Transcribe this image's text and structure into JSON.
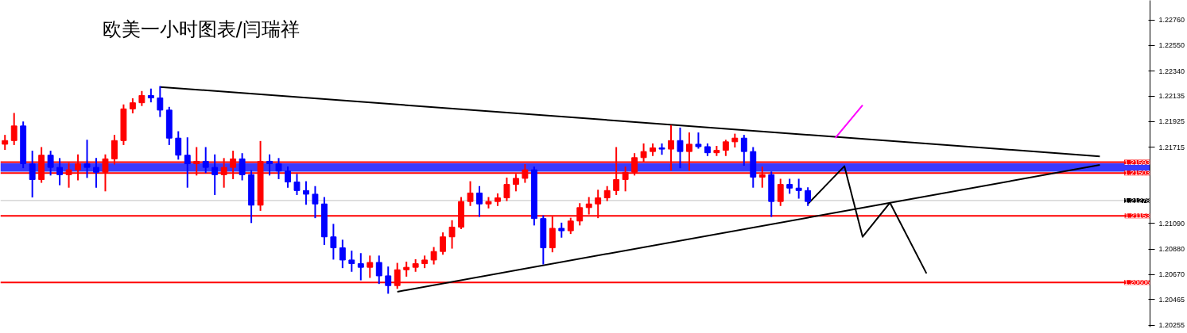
{
  "chart_data": {
    "type": "candlestick",
    "title": "欧美一小时图表/闫瑞祥",
    "categories": [
      null,
      null,
      null,
      null,
      null,
      null,
      null,
      null,
      null,
      null,
      null,
      null,
      null,
      null,
      null,
      null,
      null,
      null,
      null,
      null,
      null,
      null,
      null,
      null,
      null,
      null,
      null,
      null,
      null,
      null,
      null,
      null,
      null,
      null,
      null,
      null,
      null,
      null,
      null,
      null,
      null,
      null,
      null,
      null,
      null,
      null,
      null,
      null,
      null,
      null,
      null,
      null,
      null,
      null,
      null,
      null,
      null,
      null,
      null,
      null,
      null,
      null,
      null,
      null,
      null,
      null,
      null,
      null,
      null,
      null,
      null,
      null,
      null,
      null,
      null,
      null,
      null,
      null,
      null,
      null,
      null,
      null,
      null,
      null,
      null,
      null,
      null,
      null,
      null,
      null,
      null,
      null,
      null,
      null,
      null,
      null,
      null,
      null,
      null,
      null,
      null,
      null,
      null,
      null,
      null,
      null,
      null,
      null,
      null,
      null,
      null,
      null,
      null,
      null,
      null,
      null,
      null,
      null,
      null,
      null,
      null,
      null,
      null,
      null,
      null,
      null
    ],
    "ohlc": [
      [
        1.2174,
        1.2181,
        1.217,
        1.2177
      ],
      [
        1.2177,
        1.2199,
        1.2174,
        1.2189
      ],
      [
        1.2189,
        1.2192,
        1.2155,
        1.2158
      ],
      [
        1.2158,
        1.2168,
        1.2131,
        1.2145
      ],
      [
        1.2145,
        1.2171,
        1.2143,
        1.2165
      ],
      [
        1.2165,
        1.2168,
        1.2149,
        1.2155
      ],
      [
        1.2155,
        1.2162,
        1.2141,
        1.2149
      ],
      [
        1.2149,
        1.2158,
        1.2139,
        1.2153
      ],
      [
        1.2153,
        1.2165,
        1.2145,
        1.2158
      ],
      [
        1.2158,
        1.2177,
        1.2147,
        1.2155
      ],
      [
        1.2155,
        1.2162,
        1.2139,
        1.2151
      ],
      [
        1.2151,
        1.2165,
        1.2136,
        1.2162
      ],
      [
        1.2162,
        1.2181,
        1.2158,
        1.2177
      ],
      [
        1.2177,
        1.2206,
        1.2174,
        1.2203
      ],
      [
        1.2203,
        1.2211,
        1.22,
        1.2208
      ],
      [
        1.2208,
        1.2217,
        1.2206,
        1.2214
      ],
      [
        1.2214,
        1.2219,
        1.2209,
        1.2212
      ],
      [
        1.2212,
        1.2221,
        1.2197,
        1.2202
      ],
      [
        1.2202,
        1.2204,
        1.2174,
        1.2179
      ],
      [
        1.2179,
        1.2184,
        1.2162,
        1.2165
      ],
      [
        1.2165,
        1.2179,
        1.2139,
        1.2158
      ],
      [
        1.2158,
        1.2171,
        1.2149,
        1.216
      ],
      [
        1.216,
        1.2171,
        1.2151,
        1.2155
      ],
      [
        1.2155,
        1.2165,
        1.2133,
        1.2149
      ],
      [
        1.2149,
        1.2162,
        1.2139,
        1.2155
      ],
      [
        1.2155,
        1.2168,
        1.2146,
        1.2162
      ],
      [
        1.2162,
        1.2166,
        1.2145,
        1.2149
      ],
      [
        1.2149,
        1.2152,
        1.211,
        1.2124
      ],
      [
        1.2124,
        1.2176,
        1.212,
        1.216
      ],
      [
        1.216,
        1.2165,
        1.2149,
        1.2158
      ],
      [
        1.2158,
        1.2162,
        1.2146,
        1.2152
      ],
      [
        1.2152,
        1.2155,
        1.2139,
        1.2143
      ],
      [
        1.2143,
        1.2149,
        1.2133,
        1.2136
      ],
      [
        1.2136,
        1.2143,
        1.2125,
        1.2133
      ],
      [
        1.2133,
        1.2139,
        1.2114,
        1.2125
      ],
      [
        1.2125,
        1.213,
        1.2092,
        1.2098
      ],
      [
        1.2098,
        1.2108,
        1.208,
        1.2089
      ],
      [
        1.2089,
        1.2095,
        1.2073,
        1.2079
      ],
      [
        1.2079,
        1.2086,
        1.207,
        1.2076
      ],
      [
        1.2076,
        1.2084,
        1.2063,
        1.2073
      ],
      [
        1.2073,
        1.2082,
        1.2065,
        1.2077
      ],
      [
        1.2077,
        1.2082,
        1.206,
        1.2066
      ],
      [
        1.2066,
        1.2073,
        1.2052,
        1.2058
      ],
      [
        1.2058,
        1.2076,
        1.2056,
        1.2071
      ],
      [
        1.2071,
        1.2077,
        1.2066,
        1.2073
      ],
      [
        1.2073,
        1.2079,
        1.207,
        1.2076
      ],
      [
        1.2076,
        1.2082,
        1.2073,
        1.2079
      ],
      [
        1.2079,
        1.2089,
        1.2076,
        1.2086
      ],
      [
        1.2086,
        1.2101,
        1.2084,
        1.2098
      ],
      [
        1.2098,
        1.2111,
        1.2089,
        1.2106
      ],
      [
        1.2106,
        1.213,
        1.2105,
        1.2127
      ],
      [
        1.2127,
        1.2143,
        1.2124,
        1.2134
      ],
      [
        1.2134,
        1.2139,
        1.2115,
        1.2125
      ],
      [
        1.2125,
        1.213,
        1.2122,
        1.2127
      ],
      [
        1.2127,
        1.2133,
        1.2124,
        1.213
      ],
      [
        1.213,
        1.2146,
        1.2128,
        1.2141
      ],
      [
        1.2141,
        1.2149,
        1.2136,
        1.2146
      ],
      [
        1.2146,
        1.2157,
        1.2143,
        1.2153
      ],
      [
        1.2153,
        1.2155,
        1.2108,
        1.2113
      ],
      [
        1.2113,
        1.2115,
        1.2076,
        1.2089
      ],
      [
        1.2089,
        1.2114,
        1.2086,
        1.2105
      ],
      [
        1.2105,
        1.2109,
        1.2098,
        1.2103
      ],
      [
        1.2103,
        1.2113,
        1.2101,
        1.2111
      ],
      [
        1.2111,
        1.2125,
        1.2108,
        1.2122
      ],
      [
        1.2122,
        1.213,
        1.2117,
        1.2125
      ],
      [
        1.2125,
        1.2136,
        1.2114,
        1.213
      ],
      [
        1.213,
        1.2139,
        1.2128,
        1.2136
      ],
      [
        1.2136,
        1.2171,
        1.2133,
        1.2145
      ],
      [
        1.2145,
        1.2155,
        1.2136,
        1.2151
      ],
      [
        1.2151,
        1.2166,
        1.2149,
        1.2163
      ],
      [
        1.2163,
        1.2174,
        1.216,
        1.2168
      ],
      [
        1.2168,
        1.2174,
        1.2165,
        1.2171
      ],
      [
        1.2171,
        1.2174,
        1.2166,
        1.217
      ],
      [
        1.217,
        1.2189,
        1.2153,
        1.2177
      ],
      [
        1.2177,
        1.2187,
        1.2155,
        1.2168
      ],
      [
        1.2168,
        1.2183,
        1.2153,
        1.2174
      ],
      [
        1.2174,
        1.2183,
        1.2171,
        1.2172
      ],
      [
        1.2172,
        1.2174,
        1.2165,
        1.2167
      ],
      [
        1.2167,
        1.2172,
        1.2165,
        1.2169
      ],
      [
        1.2169,
        1.2177,
        1.2165,
        1.2176
      ],
      [
        1.2176,
        1.2182,
        1.2172,
        1.2179
      ],
      [
        1.2179,
        1.2181,
        1.2157,
        1.2168
      ],
      [
        1.2168,
        1.2171,
        1.2139,
        1.2147
      ],
      [
        1.2147,
        1.2155,
        1.2139,
        1.2149
      ],
      [
        1.2149,
        1.2151,
        1.2115,
        1.2127
      ],
      [
        1.2127,
        1.2145,
        1.2124,
        1.2141
      ],
      [
        1.2141,
        1.2145,
        1.2134,
        1.2138
      ],
      [
        1.2138,
        1.2145,
        1.213,
        1.2136
      ],
      [
        1.2136,
        1.2138,
        1.2124,
        1.2127
      ],
      null,
      null,
      null,
      null,
      null,
      null,
      null,
      null,
      null,
      null,
      null,
      null,
      null,
      null,
      null,
      null,
      null,
      null,
      null,
      null,
      null,
      null,
      null,
      null,
      null,
      null,
      null,
      null,
      null,
      null,
      null,
      null,
      null,
      null,
      null,
      null,
      null
    ],
    "colors": [
      "#ff0000",
      "#ff0000",
      "#0000ff",
      "#0000ff",
      "#ff0000",
      "#0000ff",
      "#0000ff",
      "#ff0000",
      "#ff0000",
      "#0000ff",
      "#0000ff",
      "#ff0000",
      "#ff0000",
      "#ff0000",
      "#ff0000",
      "#ff0000",
      "#0000ff",
      "#0000ff",
      "#0000ff",
      "#0000ff",
      "#0000ff",
      "#ff0000",
      "#0000ff",
      "#0000ff",
      "#ff0000",
      "#ff0000",
      "#0000ff",
      "#0000ff",
      "#ff0000",
      "#0000ff",
      "#0000ff",
      "#0000ff",
      "#0000ff",
      "#0000ff",
      "#0000ff",
      "#0000ff",
      "#0000ff",
      "#0000ff",
      "#0000ff",
      "#0000ff",
      "#ff0000",
      "#0000ff",
      "#0000ff",
      "#ff0000",
      "#ff0000",
      "#ff0000",
      "#ff0000",
      "#ff0000",
      "#ff0000",
      "#ff0000",
      "#ff0000",
      "#ff0000",
      "#0000ff",
      "#ff0000",
      "#ff0000",
      "#ff0000",
      "#ff0000",
      "#ff0000",
      "#0000ff",
      "#0000ff",
      "#ff0000",
      "#0000ff",
      "#ff0000",
      "#ff0000",
      "#ff0000",
      "#ff0000",
      "#ff0000",
      "#ff0000",
      "#ff0000",
      "#ff0000",
      "#ff0000",
      "#ff0000",
      "#0000ff",
      "#ff0000",
      "#0000ff",
      "#ff0000",
      "#0000ff",
      "#0000ff",
      "#ff0000",
      "#ff0000",
      "#ff0000",
      "#0000ff",
      "#0000ff",
      "#ff0000",
      "#0000ff",
      "#ff0000",
      "#0000ff",
      "#0000ff",
      "#0000ff",
      null,
      null,
      null,
      null,
      null,
      null,
      null,
      null,
      null,
      null,
      null,
      null,
      null,
      null,
      null,
      null,
      null,
      null,
      null,
      null,
      null,
      null,
      null,
      null,
      null,
      null,
      null,
      null,
      null,
      null,
      null,
      null,
      null,
      null,
      null,
      null,
      null
    ],
    "series": [
      {
        "type": "line",
        "color": "#000000",
        "values": [
          null,
          null,
          null,
          null,
          null,
          null,
          null,
          null,
          null,
          null,
          null,
          null,
          null,
          null,
          null,
          null,
          null,
          1.2221,
          null,
          null,
          null,
          null,
          null,
          null,
          null,
          null,
          null,
          null,
          null,
          null,
          null,
          null,
          null,
          null,
          null,
          null,
          null,
          null,
          null,
          null,
          null,
          null,
          null,
          null,
          null,
          null,
          null,
          null,
          null,
          null,
          null,
          null,
          null,
          null,
          null,
          null,
          null,
          null,
          null,
          null,
          null,
          null,
          null,
          null,
          null,
          null,
          null,
          null,
          null,
          null,
          null,
          null,
          null,
          null,
          null,
          null,
          null,
          null,
          null,
          null,
          null,
          null,
          null,
          null,
          null,
          null,
          null,
          null,
          null,
          null,
          null,
          null,
          null,
          null,
          null,
          null,
          null,
          null,
          null,
          null,
          null,
          null,
          null,
          null,
          null,
          null,
          null,
          null,
          null,
          null,
          null,
          null,
          null,
          null,
          null,
          null,
          null,
          null,
          null,
          null,
          1.2164,
          null,
          null,
          null,
          null,
          null
        ]
      },
      {
        "type": "line",
        "color": "#000000",
        "values": [
          null,
          null,
          null,
          null,
          null,
          null,
          null,
          null,
          null,
          null,
          null,
          null,
          null,
          null,
          null,
          null,
          null,
          null,
          null,
          null,
          null,
          null,
          null,
          null,
          null,
          null,
          null,
          null,
          null,
          null,
          null,
          null,
          null,
          null,
          null,
          null,
          null,
          null,
          null,
          null,
          null,
          null,
          null,
          1.2053,
          null,
          null,
          null,
          null,
          null,
          null,
          null,
          null,
          null,
          null,
          null,
          null,
          null,
          null,
          null,
          null,
          null,
          null,
          null,
          null,
          null,
          null,
          null,
          null,
          null,
          null,
          null,
          null,
          null,
          null,
          null,
          null,
          null,
          null,
          null,
          null,
          null,
          null,
          null,
          null,
          null,
          null,
          null,
          null,
          null,
          null,
          null,
          null,
          null,
          null,
          null,
          null,
          null,
          null,
          null,
          null,
          null,
          null,
          null,
          null,
          null,
          null,
          null,
          null,
          null,
          null,
          null,
          null,
          null,
          null,
          null,
          null,
          null,
          null,
          null,
          null,
          1.2157,
          null,
          null,
          null,
          null,
          null
        ]
      },
      {
        "type": "line",
        "color": "#000000",
        "values": [
          null,
          null,
          null,
          null,
          null,
          null,
          null,
          null,
          null,
          null,
          null,
          null,
          null,
          null,
          null,
          null,
          null,
          null,
          null,
          null,
          null,
          null,
          null,
          null,
          null,
          null,
          null,
          null,
          null,
          null,
          null,
          null,
          null,
          null,
          null,
          null,
          null,
          null,
          null,
          null,
          null,
          null,
          null,
          null,
          null,
          null,
          null,
          null,
          null,
          null,
          null,
          null,
          null,
          null,
          null,
          null,
          null,
          null,
          null,
          null,
          null,
          null,
          null,
          null,
          null,
          null,
          null,
          null,
          null,
          null,
          null,
          null,
          null,
          null,
          null,
          null,
          null,
          null,
          null,
          null,
          null,
          null,
          null,
          null,
          null,
          null,
          null,
          null,
          1.2125,
          null,
          null,
          null,
          1.2156,
          null,
          1.2098,
          null,
          null,
          1.2126,
          null,
          null,
          null,
          1.2068,
          null,
          null,
          null,
          null,
          null,
          null,
          null,
          null,
          null,
          null,
          null,
          null,
          null,
          null,
          null,
          null,
          null,
          null,
          null,
          null,
          null,
          null,
          null,
          null
        ]
      },
      {
        "type": "line",
        "color": "#ff00ff",
        "values": [
          null,
          null,
          null,
          null,
          null,
          null,
          null,
          null,
          null,
          null,
          null,
          null,
          null,
          null,
          null,
          null,
          null,
          null,
          null,
          null,
          null,
          null,
          null,
          null,
          null,
          null,
          null,
          null,
          null,
          null,
          null,
          null,
          null,
          null,
          null,
          null,
          null,
          null,
          null,
          null,
          null,
          null,
          null,
          null,
          null,
          null,
          null,
          null,
          null,
          null,
          null,
          null,
          null,
          null,
          null,
          null,
          null,
          null,
          null,
          null,
          null,
          null,
          null,
          null,
          null,
          null,
          null,
          null,
          null,
          null,
          null,
          null,
          null,
          null,
          null,
          null,
          null,
          null,
          null,
          null,
          null,
          null,
          null,
          null,
          null,
          null,
          null,
          null,
          null,
          null,
          null,
          1.2179,
          null,
          null,
          1.2206,
          null,
          null,
          null,
          null,
          null,
          null,
          null,
          null,
          null,
          null,
          null,
          null,
          null,
          null,
          null,
          null,
          null,
          null,
          null,
          null,
          null,
          null,
          null,
          null,
          null,
          null,
          null,
          null,
          null,
          null,
          null
        ]
      }
    ],
    "ylim": [
      1.2024,
      1.2292
    ],
    "yticks": [
      {
        "value": 1.2276,
        "label": "1.22760"
      },
      {
        "value": 1.2255,
        "label": "1.22550"
      },
      {
        "value": 1.2234,
        "label": "1.22340"
      },
      {
        "value": 1.22135,
        "label": "1.22135"
      },
      {
        "value": 1.21925,
        "label": "1.21925"
      },
      {
        "value": 1.21715,
        "label": "1.21715"
      },
      {
        "value": 1.2109,
        "label": "1.21090"
      },
      {
        "value": 1.2088,
        "label": "1.20880"
      },
      {
        "value": 1.2067,
        "label": "1.20670"
      },
      {
        "value": 1.20465,
        "label": "1.20465"
      },
      {
        "value": 1.20255,
        "label": "1.20255"
      }
    ],
    "ref_lines": [
      {
        "axis": "y",
        "value": 1.21593,
        "label": "1.21593",
        "color": "#ff0000"
      },
      {
        "axis": "y",
        "value": 1.21503,
        "label": "1.21503",
        "color": "#ff0000"
      },
      {
        "axis": "y",
        "value": 1.21278,
        "label": "1.21278",
        "color": "#c0c0c0"
      },
      {
        "axis": "y",
        "value": 1.21153,
        "label": "1.21153",
        "color": "#ff0000"
      },
      {
        "axis": "y",
        "value": 1.20606,
        "label": "1.20606",
        "color": "#ff0000"
      }
    ],
    "bands": [
      {
        "axis": "y",
        "from": 1.21515,
        "to": 1.21585,
        "color": "#3a3aff"
      }
    ],
    "tick_labels": "y"
  }
}
